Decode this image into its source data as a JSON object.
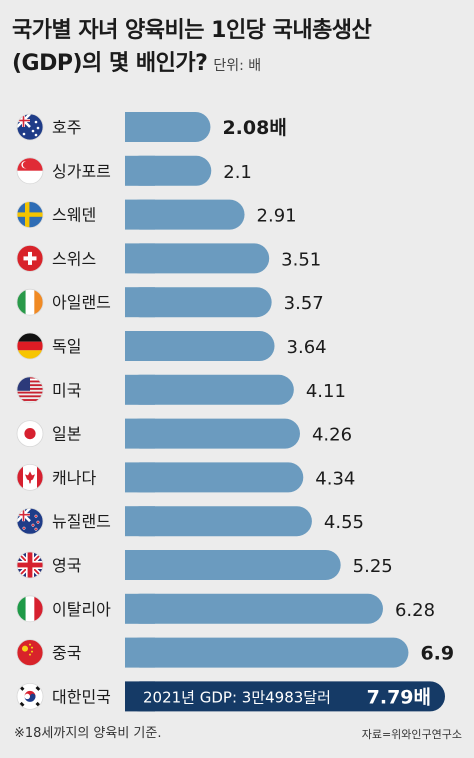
{
  "header": {
    "title_line1": "국가별 자녀 양육비는 1인당 국내총생산",
    "title_line2": "(GDP)의 몇 배인가?",
    "unit": "단위: 배"
  },
  "footer": {
    "note": "※18세까지의 양육비 기준.",
    "source": "자료=위와인구연구소"
  },
  "colors": {
    "bar": "#6b9bbf",
    "highlight_bar": "#153a66",
    "background": "#ececec"
  },
  "chart_data": {
    "type": "bar",
    "orientation": "horizontal",
    "categories": [
      "호주",
      "싱가포르",
      "스웨덴",
      "스위스",
      "아일랜드",
      "독일",
      "미국",
      "일본",
      "캐나다",
      "뉴질랜드",
      "영국",
      "이탈리아",
      "중국",
      "대한민국"
    ],
    "flags": [
      "australia-flag",
      "singapore-flag",
      "sweden-flag",
      "switzerland-flag",
      "ireland-flag",
      "germany-flag",
      "usa-flag",
      "japan-flag",
      "canada-flag",
      "new-zealand-flag",
      "uk-flag",
      "italy-flag",
      "china-flag",
      "korea-flag"
    ],
    "values": [
      2.08,
      2.1,
      2.91,
      3.51,
      3.57,
      3.64,
      4.11,
      4.26,
      4.34,
      4.55,
      5.25,
      6.28,
      6.9,
      7.79
    ],
    "value_labels": [
      "2.08배",
      "2.1",
      "2.91",
      "3.51",
      "3.57",
      "3.64",
      "4.11",
      "4.26",
      "4.34",
      "4.55",
      "5.25",
      "6.28",
      "6.9",
      "7.79배"
    ],
    "bold_labels": [
      true,
      false,
      false,
      false,
      false,
      false,
      false,
      false,
      false,
      false,
      false,
      false,
      true,
      true
    ],
    "highlight": {
      "category": "대한민국",
      "inner_text": "2021년 GDP: 3만4983달러"
    }
  }
}
